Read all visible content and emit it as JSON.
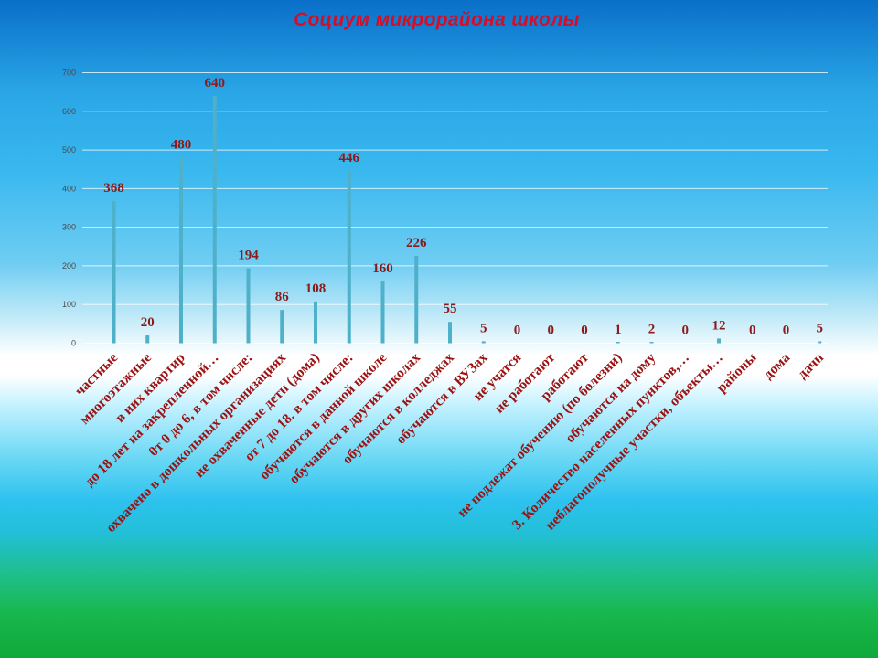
{
  "title": "Социум микрорайона школы",
  "chart_data": {
    "type": "bar",
    "title": "Социум микрорайона школы",
    "xlabel": "",
    "ylabel": "",
    "ylim": [
      0,
      700
    ],
    "yticks": [
      "0",
      "100",
      "200",
      "300",
      "400",
      "500",
      "600",
      "700"
    ],
    "grid": true,
    "legend": "none",
    "bar_color": "#4fb0c9",
    "label_color": "#8b1a1a",
    "category_color": "#9c1212",
    "categories": [
      "частные",
      "многоэтажные",
      "в них квартир",
      "до 18 лет на закрепленной…",
      "0т 0 до 6, в том числе:",
      "охвачено в дошкольных организациях",
      "не охваченные дети (дома)",
      "от 7 до 18. в том числе:",
      "обучаются в данной школе",
      "обучаются в других школах",
      "обучаются в колледжах",
      "обучаются в ВУЗах",
      "не учатся",
      "не работают",
      "работают",
      "не подлежат обучению (по болезни)",
      "обучаются на дому",
      "3. Количество населенных пунктов,…",
      "неблагополучные участки, объекты…",
      "районы",
      "дома",
      "дачи"
    ],
    "values": [
      368,
      20,
      480,
      640,
      194,
      86,
      108,
      446,
      160,
      226,
      55,
      5,
      0,
      0,
      0,
      1,
      2,
      0,
      12,
      0,
      0,
      5
    ],
    "data_labels": [
      "368",
      "20",
      "480",
      "640",
      "194",
      "86",
      "108",
      "446",
      "160",
      "226",
      "55",
      "5",
      "0",
      "0",
      "0",
      "1",
      "2",
      "0",
      "12",
      "0",
      "0",
      "5"
    ]
  }
}
